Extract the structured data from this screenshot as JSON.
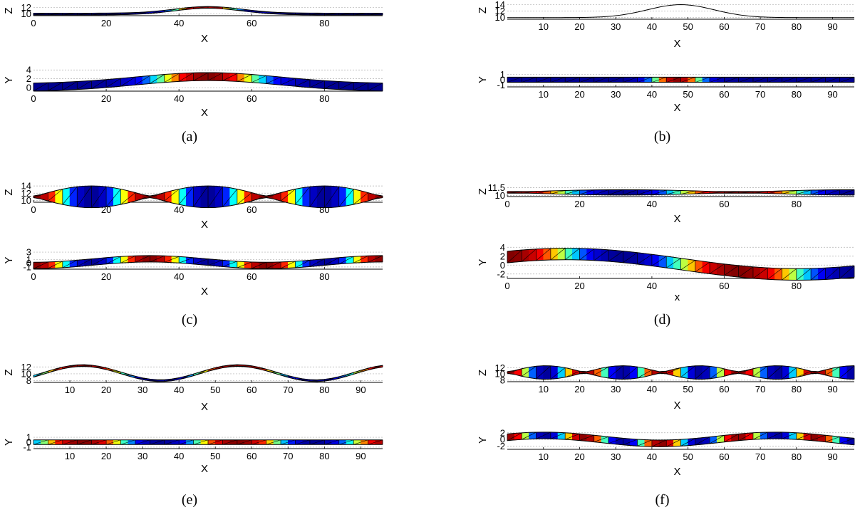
{
  "chart_data": [
    {
      "id": "a",
      "caption": "(a)",
      "type": "surface-mesh-projection",
      "title": "",
      "top": {
        "view": "x-z",
        "xlabel": "X",
        "ylabel": "Z",
        "xlim": [
          0,
          96
        ],
        "ylim": [
          9.5,
          12.5
        ],
        "xticks": [
          0,
          20,
          40,
          60,
          80
        ],
        "yticks": [
          10,
          12
        ],
        "mode": {
          "kind": "bump",
          "base": 10,
          "amp": 2,
          "sigma": 13,
          "center": 48
        },
        "color": {
          "kind": "bump",
          "sigma": 9,
          "center": 47
        }
      },
      "bottom": {
        "view": "x-y",
        "xlabel": "X",
        "ylabel": "Y",
        "xlim": [
          0,
          96
        ],
        "ylim": [
          -0.8,
          4.2
        ],
        "xticks": [
          0,
          20,
          40,
          60,
          80
        ],
        "yticks": [
          0,
          2,
          4
        ],
        "mode": {
          "kind": "bump",
          "base": 0,
          "amp": 2.5,
          "sigma": 28,
          "center": 48
        },
        "color": {
          "kind": "bump",
          "sigma": 15,
          "center": 48
        }
      }
    },
    {
      "id": "b",
      "caption": "(b)",
      "type": "surface-mesh-projection",
      "title": "",
      "top": {
        "view": "x-z",
        "xlabel": "X",
        "ylabel": "Z",
        "xlim": [
          0,
          96
        ],
        "ylim": [
          9.5,
          15
        ],
        "xticks": [
          10,
          20,
          30,
          40,
          50,
          60,
          70,
          80,
          90
        ],
        "yticks": [
          10,
          12,
          14
        ],
        "mode": {
          "kind": "bump",
          "base": 10,
          "amp": 4,
          "sigma": 13,
          "center": 48
        },
        "color": {
          "kind": "bump",
          "sigma": 9,
          "center": 47
        }
      },
      "bottom": {
        "view": "x-y",
        "xlabel": "X",
        "ylabel": "Y",
        "xlim": [
          0,
          96
        ],
        "ylim": [
          -1.3,
          1.3
        ],
        "xticks": [
          10,
          20,
          30,
          40,
          50,
          60,
          70,
          80,
          90
        ],
        "yticks": [
          -1,
          0,
          1
        ],
        "mode": {
          "kind": "flat",
          "base": 0
        },
        "color": {
          "kind": "bump",
          "sigma": 7,
          "center": 47
        }
      }
    },
    {
      "id": "c",
      "caption": "(c)",
      "type": "surface-mesh-projection",
      "title": "",
      "top": {
        "view": "x-z",
        "xlabel": "X",
        "ylabel": "Z",
        "xlim": [
          0,
          96
        ],
        "ylim": [
          9.5,
          15
        ],
        "xticks": [
          0,
          20,
          40,
          60,
          80
        ],
        "yticks": [
          10,
          12,
          14
        ],
        "mode": {
          "kind": "standing",
          "base": 11,
          "amp": 3,
          "k": 0.0982
        },
        "color": {
          "kind": "cos",
          "k": 0.1963,
          "phase": 0
        }
      },
      "bottom": {
        "view": "x-y",
        "xlabel": "X",
        "ylabel": "Y",
        "xlim": [
          0,
          96
        ],
        "ylim": [
          -1.6,
          3.2
        ],
        "xticks": [
          0,
          20,
          40,
          60,
          80
        ],
        "yticks": [
          3,
          1,
          0,
          -1
        ],
        "mode": {
          "kind": "cos",
          "base": 0.3,
          "amp": 0.9,
          "k": 0.0982,
          "phase": 3.1416
        },
        "color": {
          "kind": "cos",
          "k": 0.1963,
          "phase": 0
        }
      }
    },
    {
      "id": "d",
      "caption": "(d)",
      "type": "surface-mesh-projection",
      "title": "",
      "top": {
        "view": "x-z",
        "xlabel": "X",
        "ylabel": "Z",
        "xlim": [
          0,
          96
        ],
        "ylim": [
          9.8,
          11.7
        ],
        "xticks": [
          0,
          20,
          40,
          60,
          80
        ],
        "yticks": [
          10,
          11.5
        ],
        "mode": {
          "kind": "standing",
          "base": 10.6,
          "amp": 0.5,
          "k": 0.0491
        },
        "color": {
          "kind": "cos",
          "k": 0.0982,
          "phase": 0
        }
      },
      "bottom": {
        "view": "x-y",
        "xlabel": "x",
        "ylabel": "Y",
        "xlim": [
          0,
          96
        ],
        "ylim": [
          -3,
          4.2
        ],
        "xticks": [
          0,
          20,
          40,
          60,
          80
        ],
        "yticks": [
          4,
          2,
          0,
          -2
        ],
        "mode": {
          "kind": "cos",
          "base": 0.2,
          "amp": 2.3,
          "k": 0.0491,
          "phase": -0.8
        },
        "color": {
          "kind": "cos",
          "k": 0.0982,
          "phase": 0
        }
      }
    },
    {
      "id": "e",
      "caption": "(e)",
      "type": "surface-mesh-projection",
      "title": "",
      "top": {
        "view": "x-z",
        "xlabel": "X",
        "ylabel": "Z",
        "xlim": [
          0,
          96
        ],
        "ylim": [
          7.5,
          13.3
        ],
        "xticks": [
          10,
          20,
          30,
          40,
          50,
          60,
          70,
          80,
          90
        ],
        "yticks": [
          12,
          10,
          8
        ],
        "mode": {
          "kind": "cos",
          "base": 10.2,
          "amp": 2.2,
          "k": 0.1473,
          "phase": -2.0
        },
        "color": {
          "kind": "cos",
          "k": 0.1473,
          "phase": -2.0
        }
      },
      "bottom": {
        "view": "x-y",
        "xlabel": "X",
        "ylabel": "Y",
        "xlim": [
          0,
          96
        ],
        "ylim": [
          -1.3,
          1.3
        ],
        "xticks": [
          10,
          20,
          30,
          40,
          50,
          60,
          70,
          80,
          90
        ],
        "yticks": [
          1,
          0,
          -1
        ],
        "mode": {
          "kind": "flat",
          "base": 0
        },
        "color": {
          "kind": "cos",
          "k": 0.1473,
          "phase": -2.0
        }
      }
    },
    {
      "id": "f",
      "caption": "(f)",
      "type": "surface-mesh-projection",
      "title": "",
      "top": {
        "view": "x-z",
        "xlabel": "X",
        "ylabel": "Z",
        "xlim": [
          0,
          96
        ],
        "ylim": [
          7.5,
          13.3
        ],
        "xticks": [
          10,
          20,
          30,
          40,
          50,
          60,
          70,
          80,
          90
        ],
        "yticks": [
          12,
          10,
          8
        ],
        "mode": {
          "kind": "standing",
          "base": 10.5,
          "amp": 2.2,
          "k": 0.1473
        },
        "color": {
          "kind": "cos",
          "k": 0.2945,
          "phase": 0
        }
      },
      "bottom": {
        "view": "x-y",
        "xlabel": "X",
        "ylabel": "Y",
        "xlim": [
          0,
          96
        ],
        "ylim": [
          -3,
          2.6
        ],
        "xticks": [
          10,
          20,
          30,
          40,
          50,
          60,
          70,
          80,
          90
        ],
        "yticks": [
          2,
          0,
          -2
        ],
        "mode": {
          "kind": "cos",
          "base": 0,
          "amp": 1.2,
          "k": 0.0982,
          "phase": -1.0
        },
        "color": {
          "kind": "cos",
          "k": 0.2945,
          "phase": 0
        }
      }
    }
  ],
  "colormap": [
    "#00008f",
    "#0000ff",
    "#00ffff",
    "#ffff00",
    "#ff0000",
    "#800000"
  ]
}
